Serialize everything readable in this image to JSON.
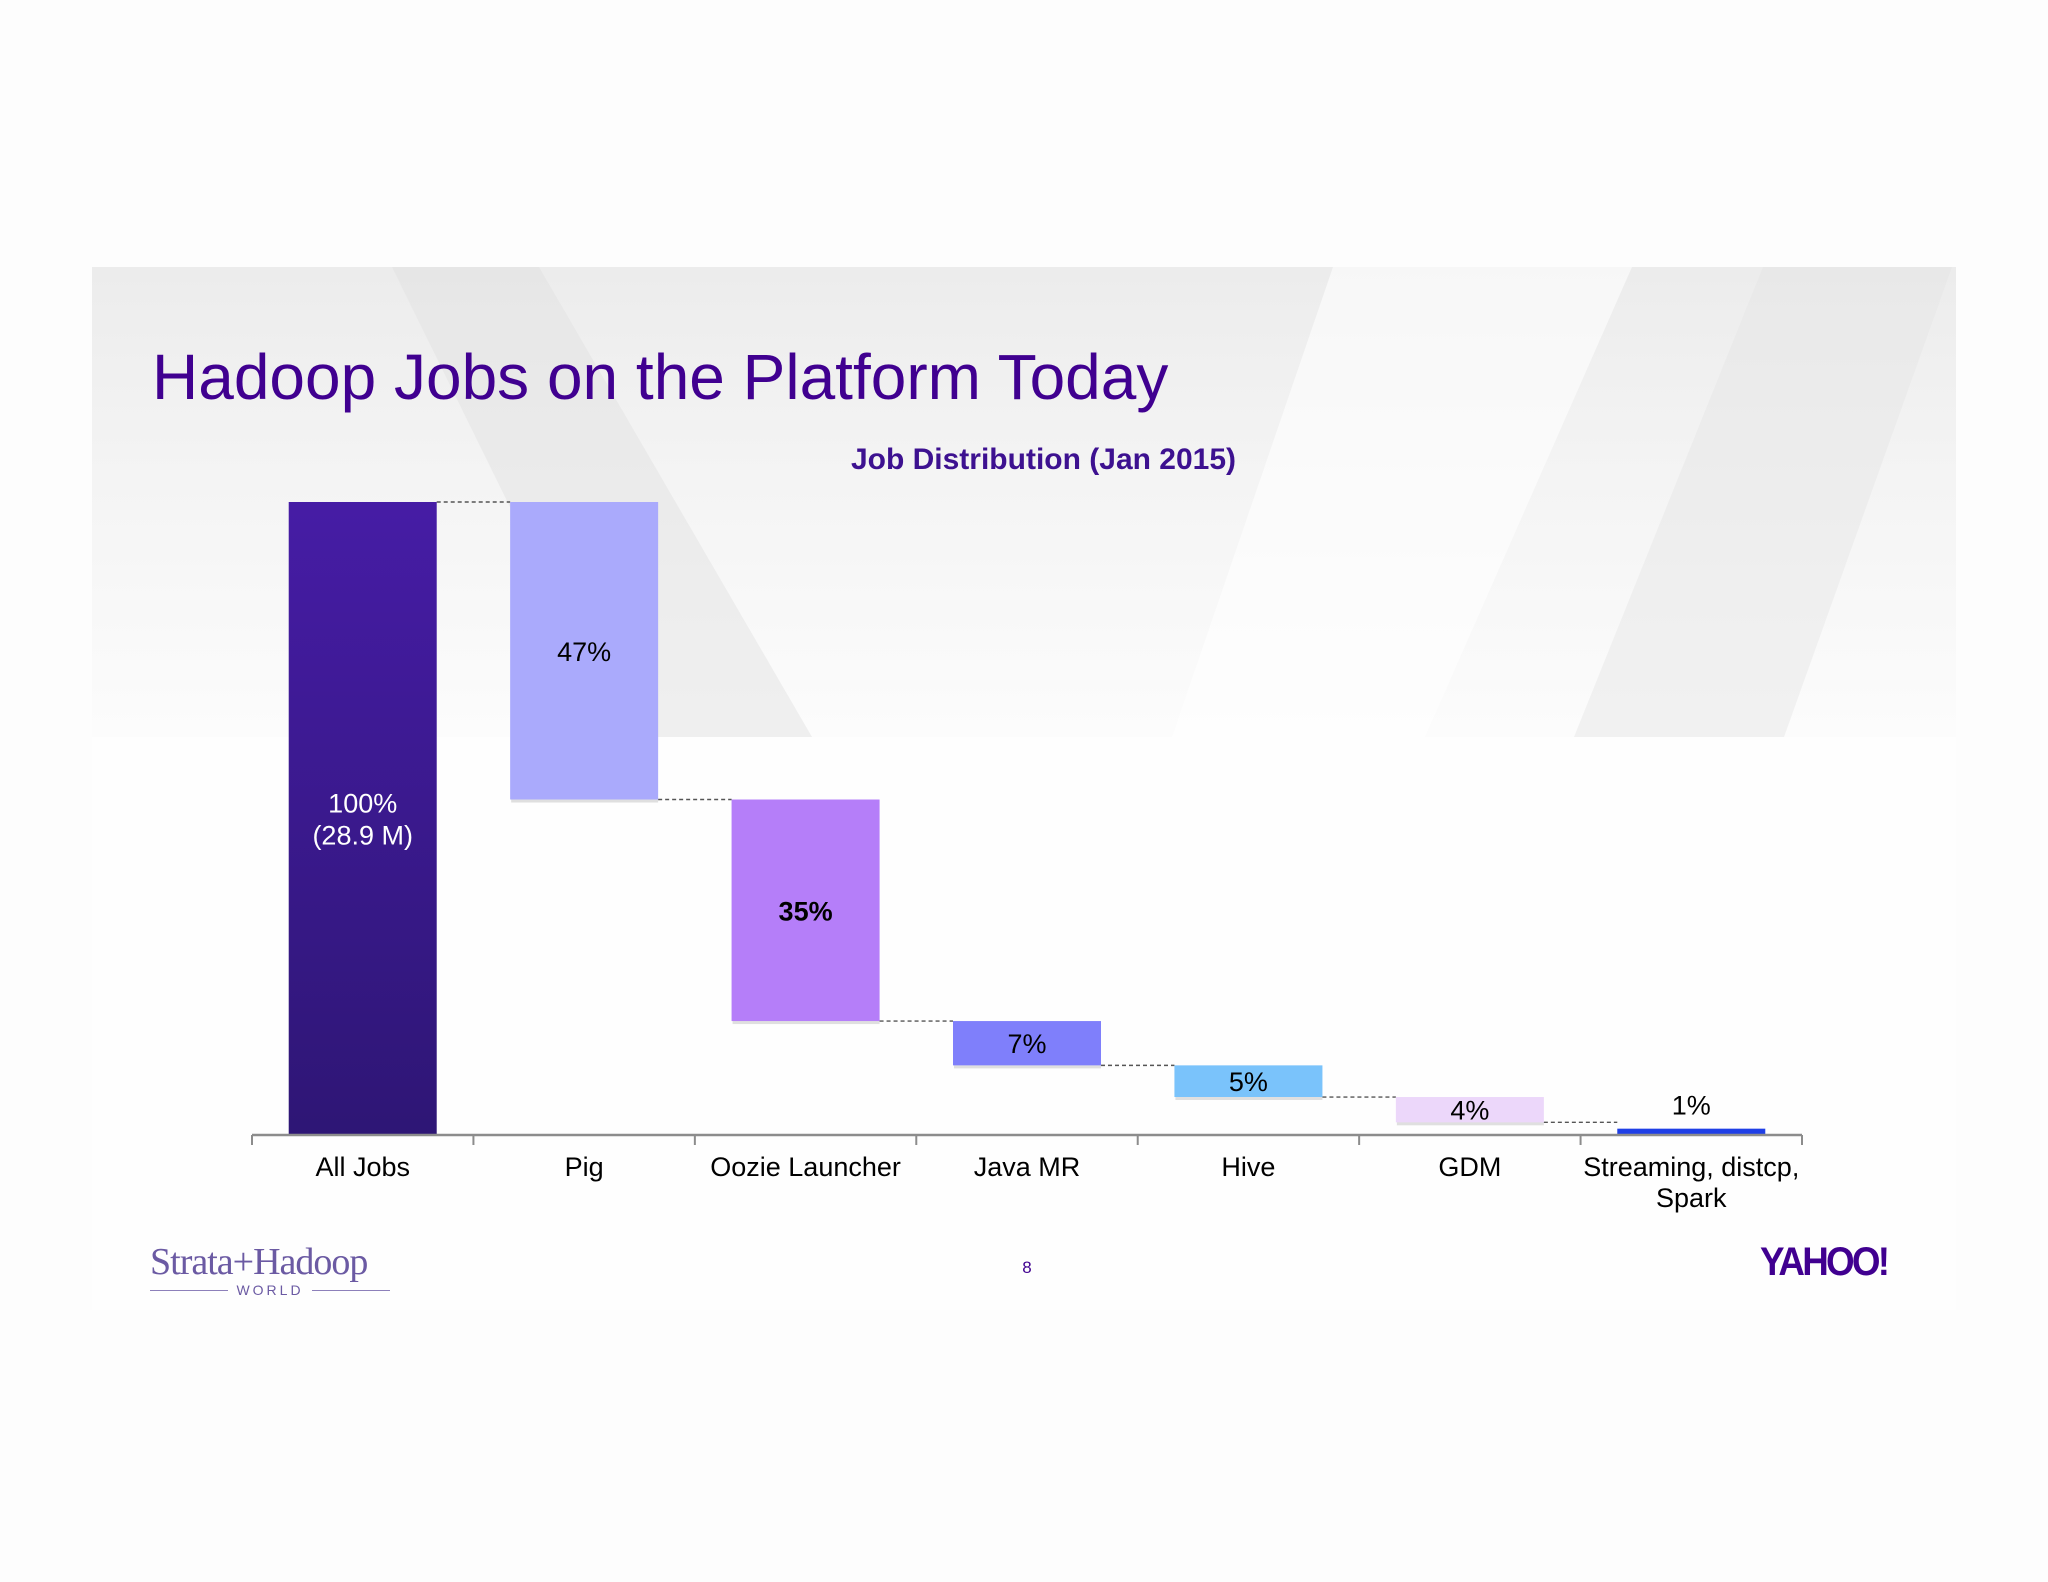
{
  "slide": {
    "title": "Hadoop Jobs on the Platform Today",
    "page_number": "8",
    "footer_left_logo": "Strata+Hadoop",
    "footer_left_logo_sub": "WORLD",
    "footer_right_logo": "YAHOO!"
  },
  "chart_data": {
    "type": "bar",
    "subtype": "waterfall",
    "title": "Job Distribution (Jan 2015)",
    "categories": [
      "All Jobs",
      "Pig",
      "Oozie Launcher",
      "Java MR",
      "Hive",
      "GDM",
      "Streaming, distcp, Spark"
    ],
    "values": [
      100,
      47,
      35,
      7,
      5,
      4,
      1
    ],
    "data_labels": [
      "100%\n(28.9 M)",
      "47%",
      "35%",
      "7%",
      "5%",
      "4%",
      "1%"
    ],
    "colors": [
      "#3c178e",
      "#aaaafc",
      "#b57ef9",
      "#7f7ffb",
      "#7ac3fb",
      "#ecd7fa",
      "#1f3fe6"
    ],
    "ylim": [
      0,
      100
    ],
    "grid": false,
    "legend": "none"
  }
}
